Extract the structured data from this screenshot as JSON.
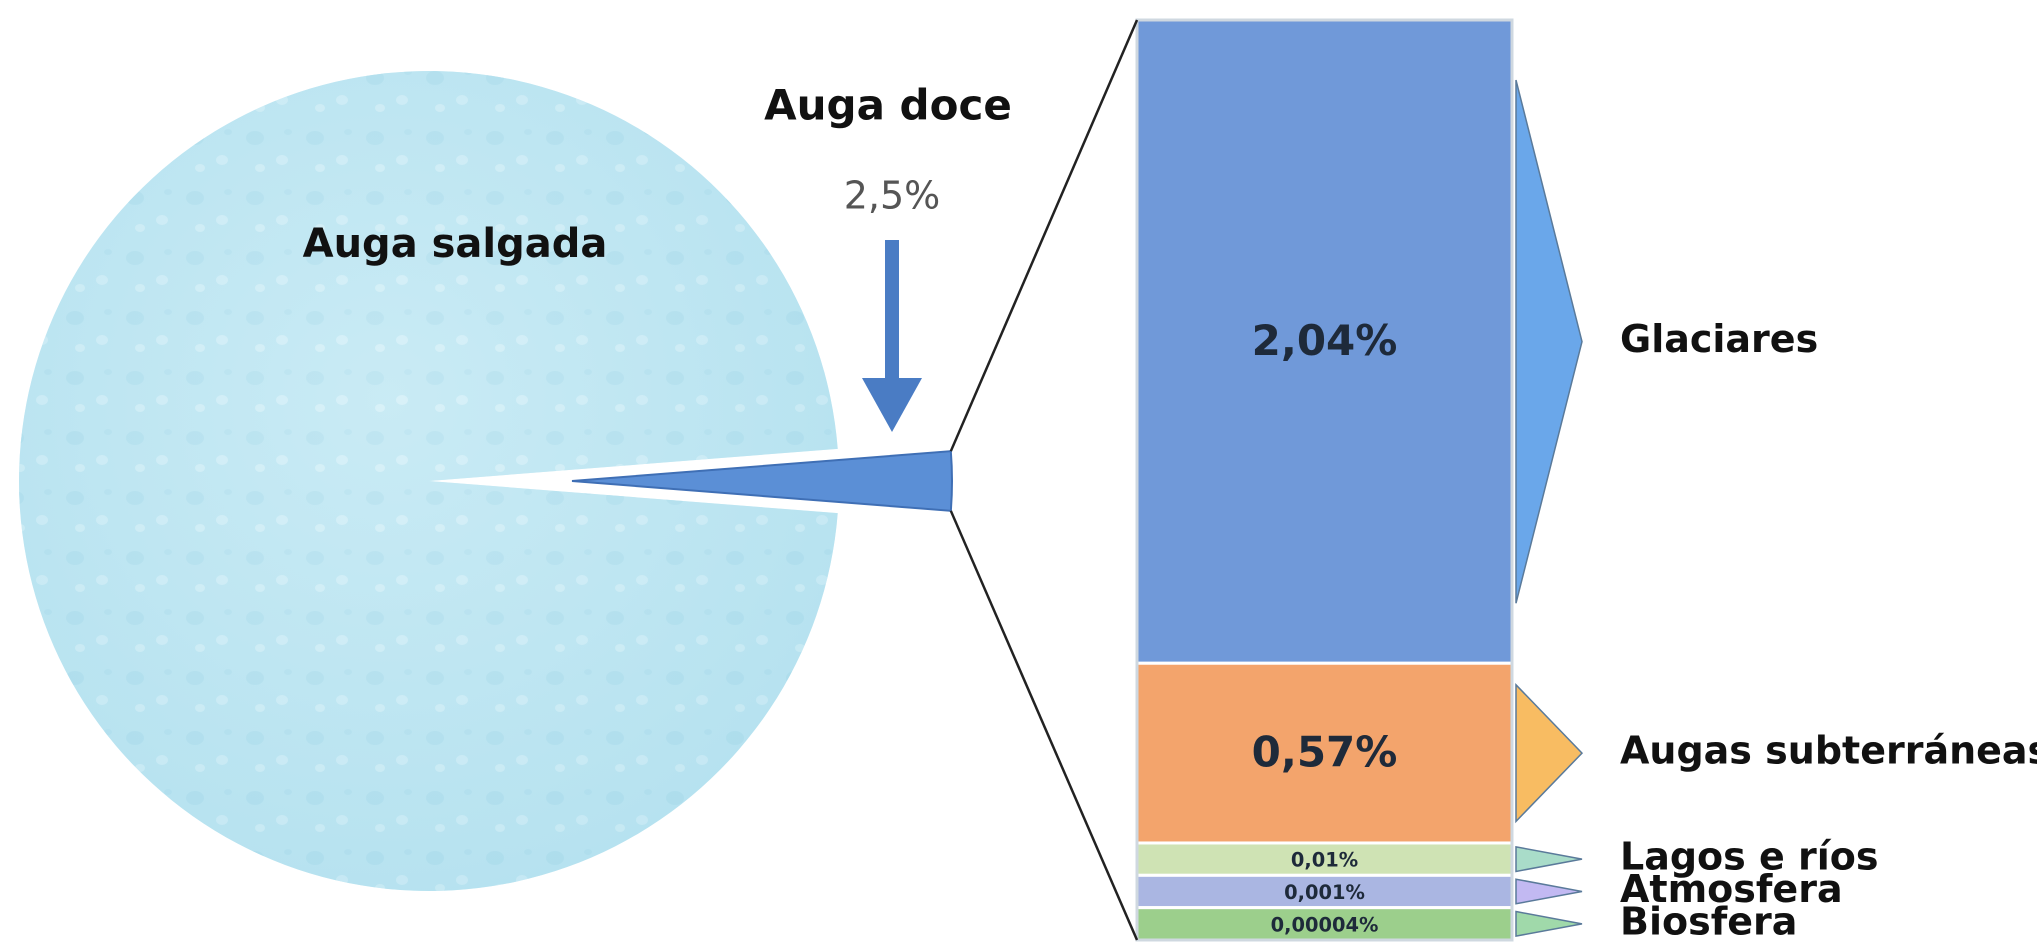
{
  "chart_data": [
    {
      "type": "pie",
      "categories": [
        "Auga salgada",
        "Auga doce"
      ],
      "values": [
        97.5,
        2.5
      ],
      "value_labels": [
        null,
        "2,5%"
      ],
      "colors": [
        "#bfe6f2",
        "#5b8fd6"
      ]
    },
    {
      "type": "bar",
      "stacked": true,
      "series": [
        {
          "name": "Glaciares",
          "color": "#7099d9",
          "values": [
            2.04
          ],
          "value_labels": [
            "2,04%"
          ]
        },
        {
          "name": "Augas subterráneas",
          "color": "#f3a46c",
          "values": [
            0.57
          ],
          "value_labels": [
            "0,57%"
          ]
        },
        {
          "name": "Lagos e ríos",
          "color": "#cfe3b4",
          "values": [
            0.01
          ],
          "value_labels": [
            "0,01%"
          ]
        },
        {
          "name": "Atmosfera",
          "color": "#aab6e2",
          "values": [
            0.001
          ],
          "value_labels": [
            "0,001%"
          ]
        },
        {
          "name": "Biosfera",
          "color": "#9ccf8c",
          "values": [
            4e-05
          ],
          "value_labels": [
            "0,00004%"
          ]
        }
      ]
    }
  ]
}
